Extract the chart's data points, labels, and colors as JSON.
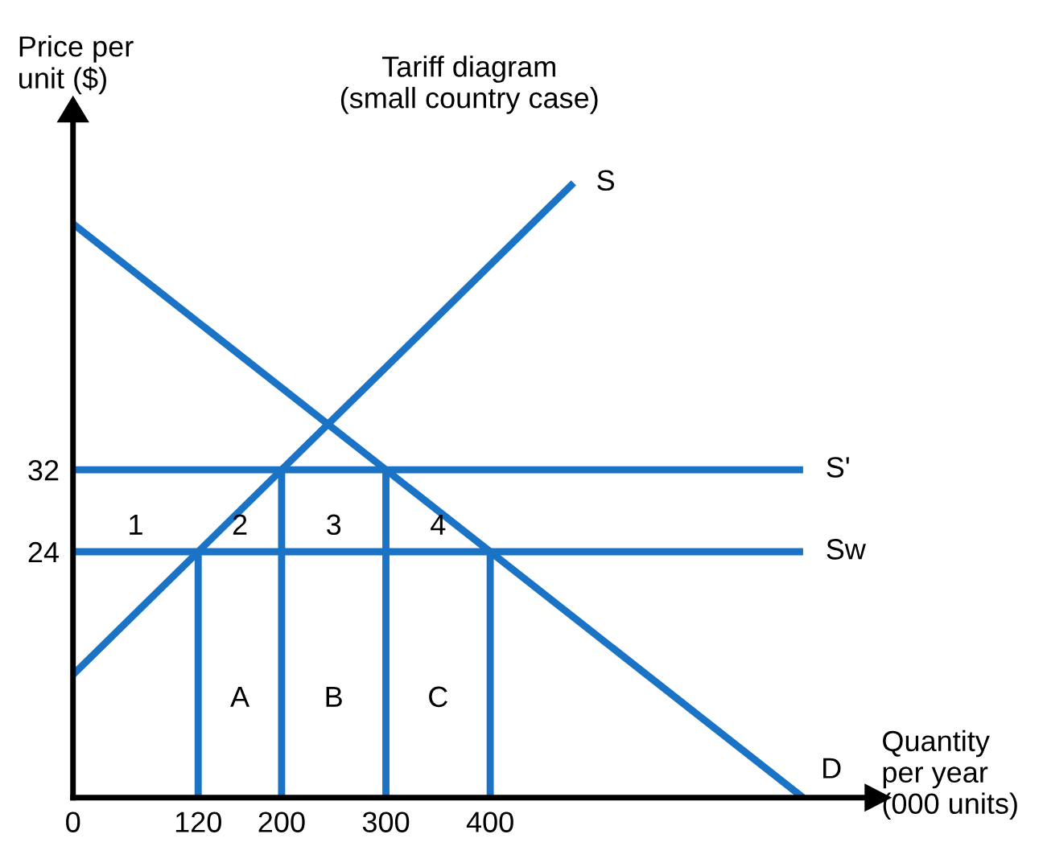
{
  "chart_data": {
    "type": "line",
    "title": "Tariff diagram\n(small country case)",
    "xlabel": "Quantity\nper year\n(000 units)",
    "ylabel": "Price per\nunit ($)",
    "xlim": [
      0,
      760
    ],
    "ylim": [
      0,
      66
    ],
    "xticks": [
      0,
      120,
      200,
      300,
      400
    ],
    "yticks": [
      24,
      32
    ],
    "grid": false,
    "legend": false,
    "marker": "none",
    "line_style": "solid",
    "series": [
      {
        "name": "S",
        "color": "#1a73c4",
        "x": [
          0,
          480
        ],
        "values": [
          12,
          60
        ]
      },
      {
        "name": "D",
        "color": "#1a73c4",
        "x": [
          0,
          700
        ],
        "values": [
          56,
          0
        ]
      },
      {
        "name": "S'",
        "color": "#1a73c4",
        "x": [
          0,
          700
        ],
        "values": [
          32,
          32
        ]
      },
      {
        "name": "Sw",
        "color": "#1a73c4",
        "x": [
          0,
          700
        ],
        "values": [
          24,
          24
        ]
      },
      {
        "color": "#1a73c4",
        "x": [
          120,
          120
        ],
        "values": [
          0,
          24
        ]
      },
      {
        "color": "#1a73c4",
        "x": [
          200,
          200
        ],
        "values": [
          0,
          32
        ]
      },
      {
        "color": "#1a73c4",
        "x": [
          300,
          300
        ],
        "values": [
          0,
          32
        ]
      },
      {
        "color": "#1a73c4",
        "x": [
          400,
          400
        ],
        "values": [
          0,
          24
        ]
      }
    ],
    "annotations": [
      "1",
      "2",
      "3",
      "4",
      "A",
      "B",
      "C"
    ]
  }
}
